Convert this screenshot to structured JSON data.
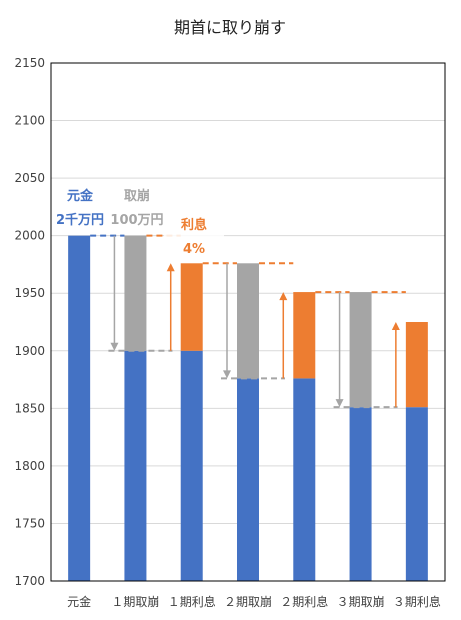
{
  "chart_data": {
    "type": "bar",
    "title": "期首に取り崩す",
    "categories": [
      "元金",
      "１期取崩",
      "１期利息",
      "２期取崩",
      "２期利息",
      "３期取崩",
      "３期利息"
    ],
    "series": [
      {
        "values": [
          2000,
          1900,
          1900,
          1876,
          1876,
          1851,
          1851
        ],
        "color": "#4472c4"
      },
      {
        "values": [
          0,
          100,
          76,
          100,
          75,
          100,
          74
        ],
        "colors": [
          "#4472c4",
          "#a5a5a5",
          "#ed7d31",
          "#a5a5a5",
          "#ed7d31",
          "#a5a5a5",
          "#ed7d31"
        ]
      }
    ],
    "ylim": [
      1700,
      2150
    ],
    "yticks": [
      1700,
      1750,
      1800,
      1850,
      1900,
      1950,
      2000,
      2050,
      2100,
      2150
    ],
    "grid": true,
    "annotations": [
      {
        "line1": "元金",
        "line2": "2千万円",
        "color": "#4472c4"
      },
      {
        "line1": "取崩",
        "line2": "100万円",
        "color": "#a5a5a5"
      },
      {
        "line1": "利息",
        "line2": "4%",
        "color": "#ed7d31"
      }
    ],
    "colors": {
      "principal": "#4472c4",
      "withdrawal": "#a5a5a5",
      "interest": "#ed7d31"
    }
  }
}
